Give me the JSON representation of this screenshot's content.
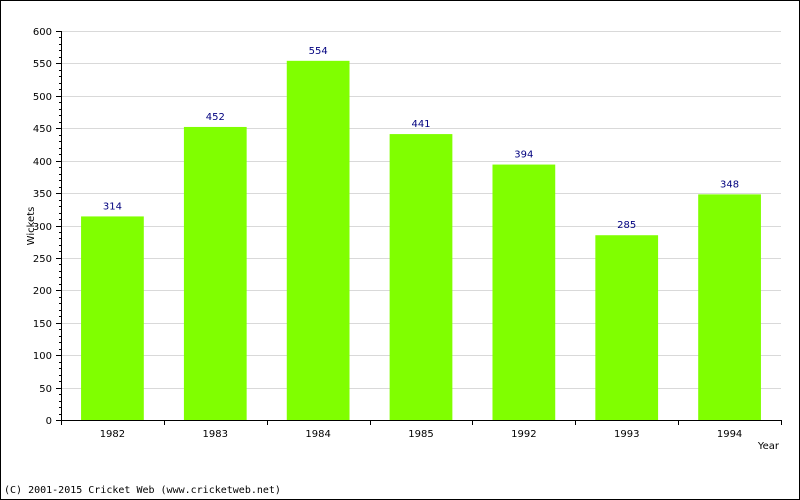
{
  "chart_data": {
    "type": "bar",
    "categories": [
      "1982",
      "1983",
      "1984",
      "1985",
      "1992",
      "1993",
      "1994"
    ],
    "values": [
      314,
      452,
      554,
      441,
      394,
      285,
      348
    ],
    "title": "",
    "xlabel": "Year",
    "ylabel": "Wickets",
    "ylim": [
      0,
      600
    ],
    "yticks": [
      0,
      50,
      100,
      150,
      200,
      250,
      300,
      350,
      400,
      450,
      500,
      550,
      600
    ],
    "grid": true,
    "bar_color": "#80ff00",
    "value_label_color": "#00007f",
    "grid_color": "#d9d9d9"
  },
  "footer": {
    "copyright": "(C) 2001-2015 Cricket Web (www.cricketweb.net)"
  }
}
